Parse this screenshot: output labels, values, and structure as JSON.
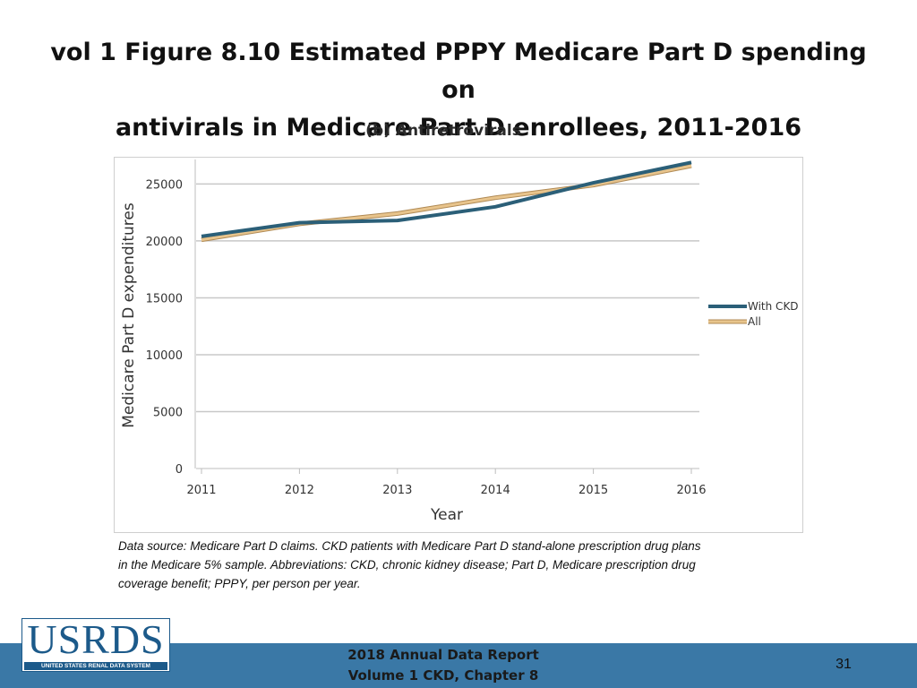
{
  "slide": {
    "title_line1": "vol 1 Figure 8.10 Estimated PPPY Medicare Part D spending on",
    "title_line2": "antivirals in Medicare Part D enrollees, 2011-2016",
    "note_line1": "Data source: Medicare Part D claims. CKD patients with Medicare Part D stand-alone prescription drug plans",
    "note_line2": "in the Medicare 5% sample. Abbreviations: CKD, chronic kidney disease; Part D, Medicare prescription drug",
    "note_line3": "coverage benefit; PPPY, per person per year.",
    "footer_line1": "2018 Annual Data Report",
    "footer_line2": "Volume 1 CKD, Chapter 8",
    "page_number": "31",
    "logo_text": "USRDS",
    "logo_subtext": "UNITED STATES RENAL DATA SYSTEM"
  },
  "chart_data": {
    "type": "line",
    "title": "(b) Antiretrovirals",
    "xlabel": "Year",
    "ylabel": "Medicare Part D expenditures",
    "x": [
      2011,
      2012,
      2013,
      2014,
      2015,
      2016
    ],
    "y_ticks": [
      0,
      5000,
      10000,
      15000,
      20000,
      25000
    ],
    "ylim": [
      0,
      27000
    ],
    "grid": "horizontal",
    "legend_position": "right",
    "series": [
      {
        "name": "With CKD",
        "color": "#2b5f78",
        "values": [
          20400,
          21600,
          21800,
          23000,
          25100,
          26900
        ]
      },
      {
        "name": "All",
        "color": "#e8c48c",
        "values": [
          20100,
          21500,
          22400,
          23800,
          24900,
          26600
        ]
      }
    ]
  }
}
